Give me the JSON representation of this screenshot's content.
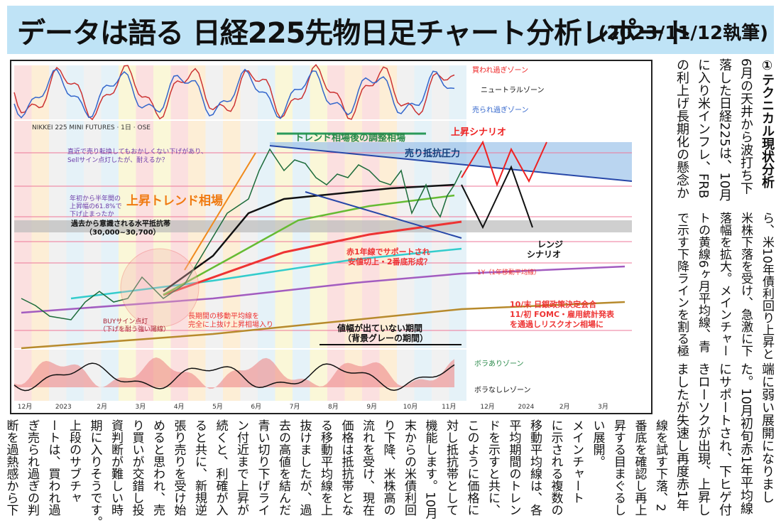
{
  "header": {
    "title": "データは語る 日経225先物日足チャート分析レポート",
    "date": "(2023/11/12執筆)"
  },
  "chart": {
    "source": "NIKKEI 225 MINI FUTURES · 1日 · OSE",
    "osc_labels": [
      "買われ過ぎゾーン",
      "ニュートラルゾーン",
      "売られ過ぎゾーン"
    ],
    "vol_labels": [
      "ボラありゾーン",
      "ボラなしレゾーン"
    ],
    "annotations": {
      "adjust": "トレンド相場後の調整相場",
      "up_scenario": "上昇シナリオ",
      "sell_pressure": "売り抵抗圧力",
      "uptrend": "上昇トレンド相場",
      "resistance_1": "過去から意識される水平抵抗帯",
      "resistance_2": "（30,000~30,700）",
      "sell_note_1": "直近で売り転換してもおかしくない下げがあり、",
      "sell_note_2": "Sellサイン点灯したが、耐えるか？",
      "fib_note_1": "年初から半年間の",
      "fib_note_2": "上昇幅の61.8%で",
      "fib_note_3": "下げ止まったか",
      "support_1": "赤1年線でサポートされ",
      "support_2": "安値切上・2番底形成？",
      "one_year": "1Y（1年移動平均線）",
      "range_1": "レンジ",
      "range_2": "シナリオ",
      "breakout_1": "長期間の移動平均線を",
      "breakout_2": "完全に上抜け上昇相場入り",
      "buy_1": "BUYサイン点灯",
      "buy_2": "（下げを耐う強い陽線）",
      "events_1": "10/末 日銀政策決定会合",
      "events_2": "11/初 FOMC・雇用統計発表",
      "events_3": "を通過しリスクオン相場に",
      "flat_1": "値幅が出ていない期間",
      "flat_2": "（背景グレーの期間）"
    },
    "x_labels": [
      "12月",
      "2023",
      "2月",
      "3月",
      "4月",
      "5月",
      "6月",
      "7月",
      "8月",
      "9月",
      "10月",
      "11月",
      "12月",
      "2024",
      "2月",
      "3月"
    ]
  },
  "article": {
    "heading": "①テクニカル現状分析",
    "blocks": [
      [
        "6月の天井から波打ち下",
        "落した日経225は、10月",
        "に入り米インフレ、FRB",
        "の利上げ長期化の懸念か"
      ],
      [
        "ら、米10年債利回り上昇と",
        "米株下落を受け、急激に下",
        "落幅を拡大。メインチャー",
        "トの黄線6ヶ月平均線、青",
        "で示す下降ラインを割る極"
      ],
      [
        "端に弱い展開になりまし",
        "た。10月初旬赤1年平均線",
        "にサポートされ、下ヒゲ付",
        "きローソクが出現、上昇し",
        "ましたが失速し再度赤1年"
      ],
      [
        "線を試す下落、2",
        "番底を確認し再上",
        "昇する目まぐるし",
        "い展開。",
        "メインチャート",
        "に示される複数の",
        "移動平均線は、各",
        "平均期間のトレン",
        "ドを示すと共に、",
        "このように価格に",
        "対し抵抗帯として",
        "機能します。10月",
        "末からの米債利回",
        "り下降、米株高の",
        "流れを受け、現在",
        "価格は抵抗帯とな",
        "る移動平均線を上",
        "抜けましたが、過",
        "去の高値を結んだ",
        "青い切り下げライ",
        "ン付近まで上昇が",
        "続くと、利確が入",
        "ると共に、新規逆",
        "張り売りを受け始",
        "めると思われ、売",
        "り買いが交錯し投",
        "資判断が難しい時",
        "期に入りそうです。",
        "上段のサブチャ",
        "ートは、買われ過",
        "ぎ売られ過ぎの判",
        "断を過熱感から下"
      ]
    ]
  }
}
